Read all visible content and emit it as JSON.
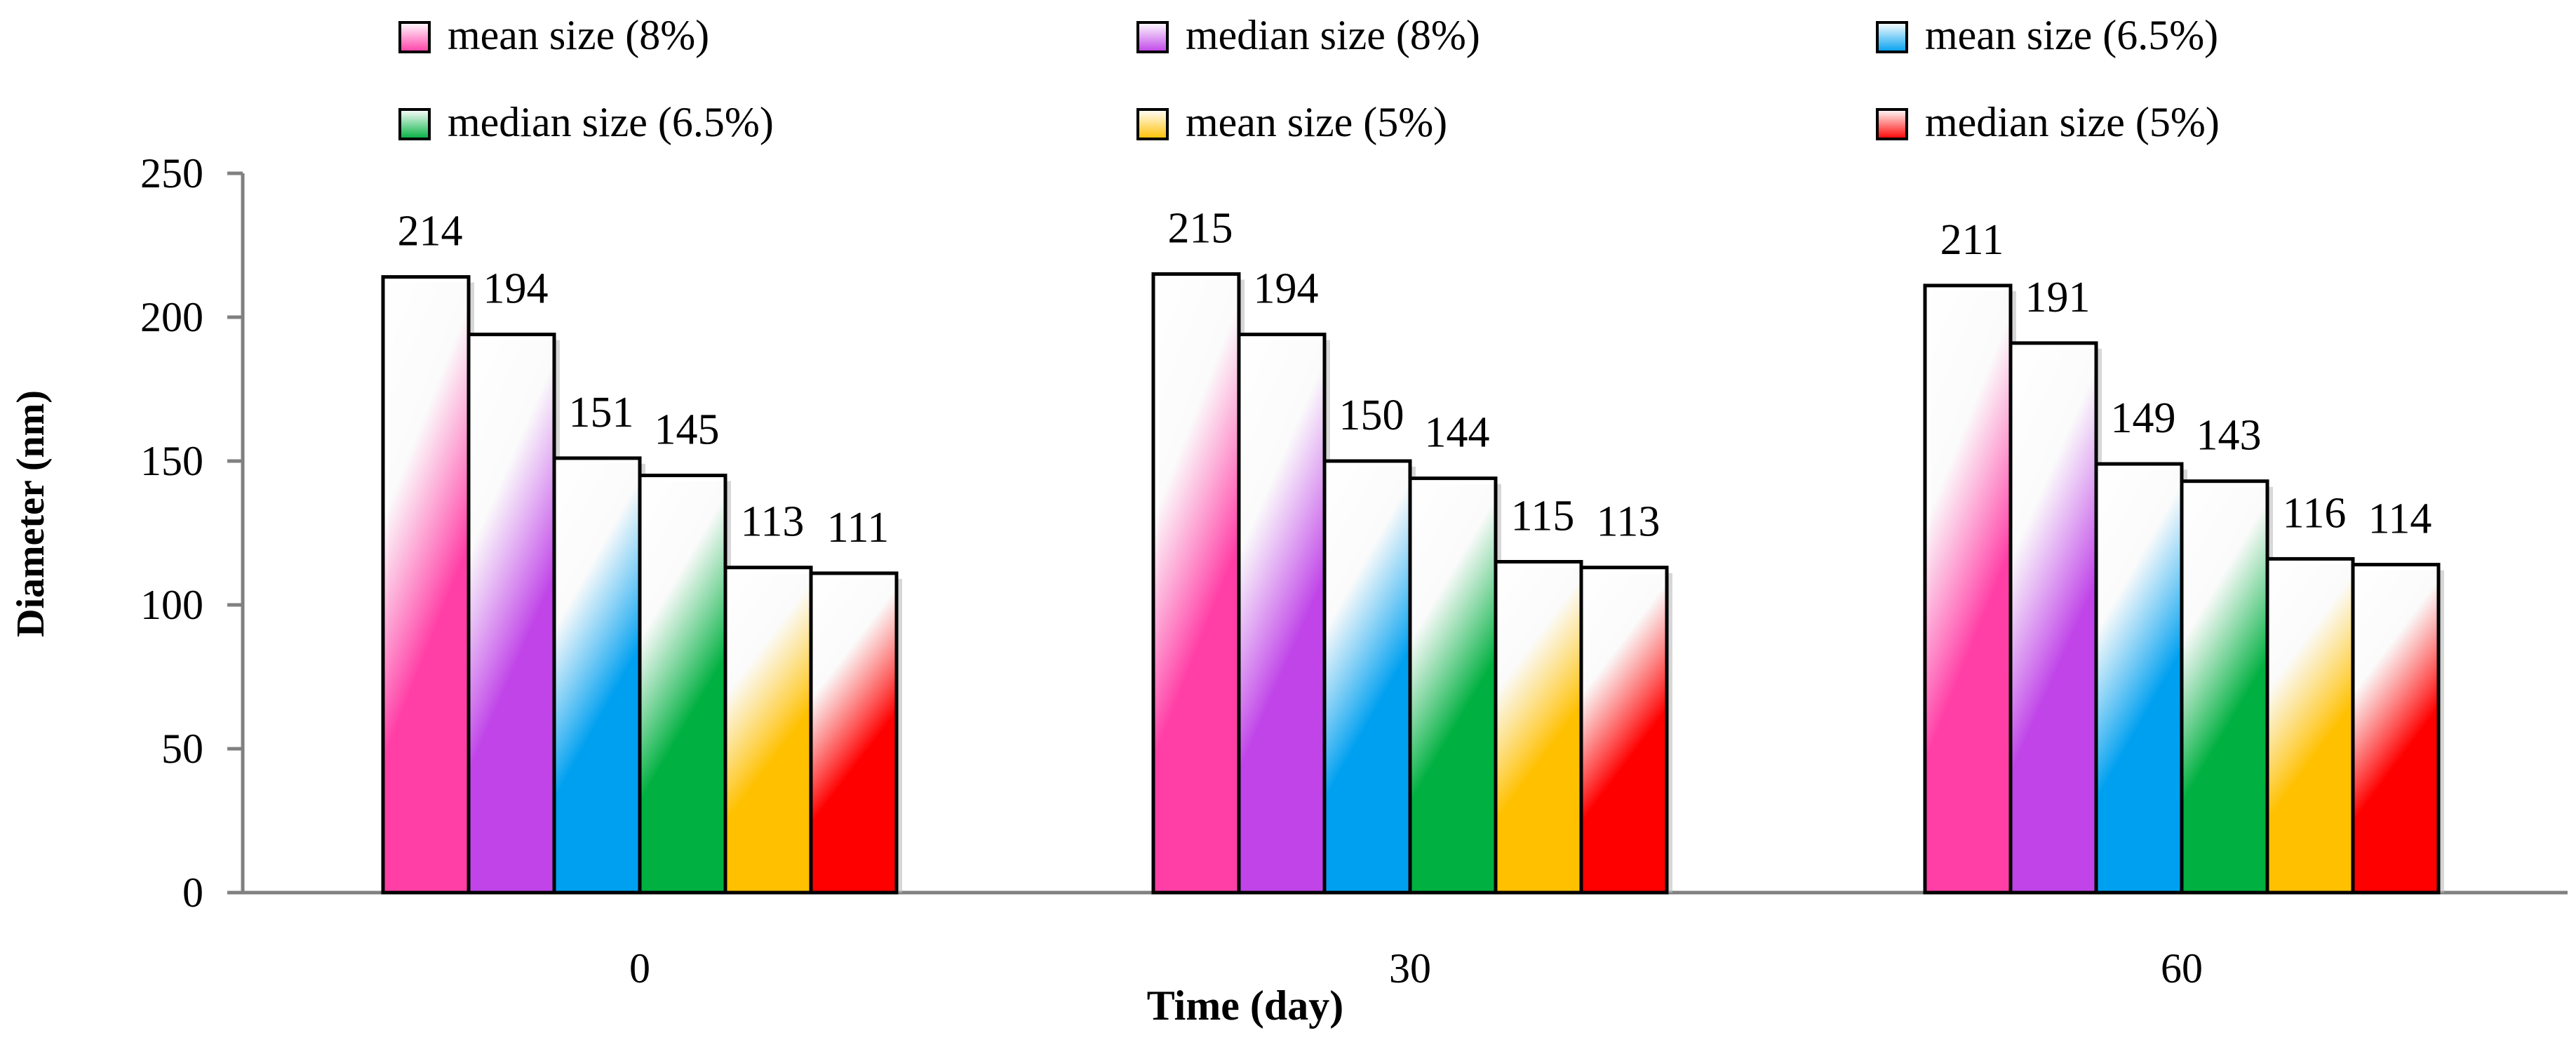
{
  "chart_data": {
    "type": "bar",
    "title": "",
    "xlabel": "Time (day)",
    "ylabel": "Diameter (nm)",
    "categories": [
      "0",
      "30",
      "60"
    ],
    "ylim": [
      0,
      250
    ],
    "yticks": [
      "0",
      "50",
      "100",
      "150",
      "200",
      "250"
    ],
    "grid": false,
    "legend_position": "top",
    "series": [
      {
        "name": "mean size (8%)",
        "values": [
          214,
          215,
          211
        ],
        "labels": [
          "214",
          "215",
          "211"
        ],
        "color": "#ff3fa6"
      },
      {
        "name": "median size (8%)",
        "values": [
          194,
          194,
          191
        ],
        "labels": [
          "194",
          "194",
          "191"
        ],
        "color": "#c044e8"
      },
      {
        "name": "mean size (6.5%)",
        "values": [
          151,
          150,
          149
        ],
        "labels": [
          "151",
          "150",
          "149"
        ],
        "color": "#00a0f0"
      },
      {
        "name": "median size (6.5%)",
        "values": [
          145,
          144,
          143
        ],
        "labels": [
          "145",
          "144",
          "143"
        ],
        "color": "#00b040"
      },
      {
        "name": "mean size (5%)",
        "values": [
          113,
          115,
          116
        ],
        "labels": [
          "113",
          "115",
          "116"
        ],
        "color": "#ffc000"
      },
      {
        "name": "median size (5%)",
        "values": [
          111,
          113,
          114
        ],
        "labels": [
          "111",
          "113",
          "114"
        ],
        "color": "#ff0000"
      }
    ]
  }
}
